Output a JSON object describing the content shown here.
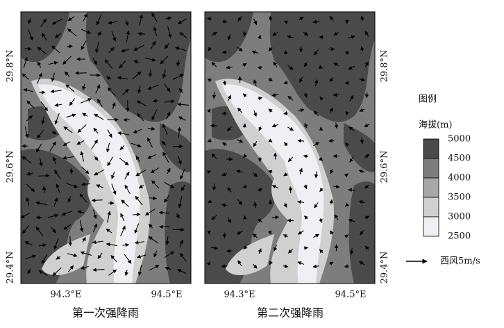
{
  "panels": [
    {
      "title": "第一次强降雨"
    },
    {
      "title": "第二次强降雨"
    }
  ],
  "latitude_labels": [
    "29.8°N",
    "29.6°N",
    "29.4°N"
  ],
  "longitude_labels": [
    "94.3°E",
    "94.5°E"
  ],
  "legend": {
    "title": "图例",
    "subtitle": "海拔(m)",
    "levels": [
      5000,
      4500,
      4000,
      3500,
      3000,
      2500
    ],
    "colors": [
      "#4a4a4a",
      "#7d7d7d",
      "#a8a8a8",
      "#d0d0d0",
      "#f0f0f4"
    ],
    "wind_label": "西风5m/s"
  }
}
